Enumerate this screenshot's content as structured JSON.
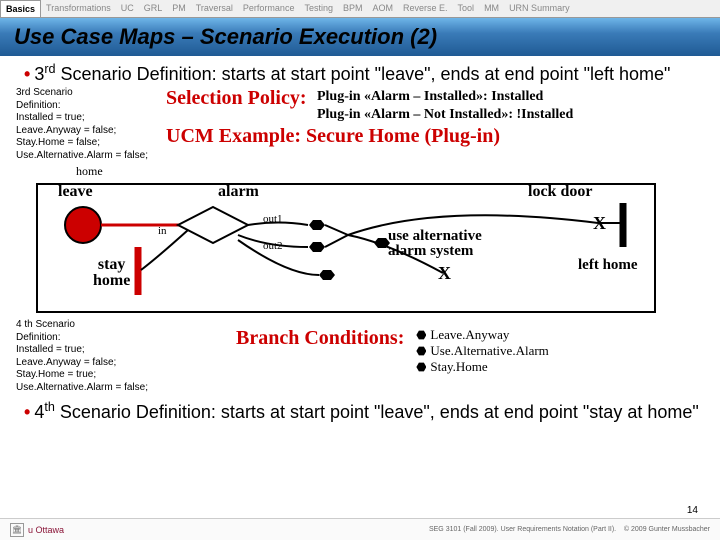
{
  "tabs": [
    "Basics",
    "Transformations",
    "UC",
    "GRL",
    "PM",
    "Traversal",
    "Performance",
    "Testing",
    "BPM",
    "AOM",
    "Reverse E.",
    "Tool",
    "MM",
    "URN Summary"
  ],
  "active_tab": 0,
  "title": "Use Case Maps – Scenario Execution (2)",
  "bullet3": {
    "ord": "3",
    "sup": "rd",
    "text": " Scenario Definition: starts at start point \"leave\", ends at end point \"left home\""
  },
  "scenario3": {
    "heading": "3rd Scenario",
    "deflabel": "Definition:",
    "lines": [
      "Installed = true;",
      "Leave.Anyway = false;",
      "Stay.Home = false;",
      "Use.Alternative.Alarm = false;"
    ]
  },
  "policy": {
    "label": "Selection Policy:",
    "p1": "Plug-in «Alarm – Installed»: Installed",
    "p2": "Plug-in «Alarm – Not Installed»: !Installed"
  },
  "example": {
    "label": "UCM Example: Secure Home (Plug-in)"
  },
  "sub_home": "home",
  "diagram": {
    "labels": {
      "leave": "leave",
      "alarm": "alarm",
      "lockdoor": "lock door",
      "in": "in",
      "out1": "out1",
      "out2": "out2",
      "stayhome": "stay\nhome",
      "usealt": "use alternative\nalarm system",
      "lefthome": "left home",
      "X1": "X",
      "X2": "X"
    }
  },
  "scenario4": {
    "heading": "4 th Scenario",
    "deflabel": "Definition:",
    "lines": [
      "Installed = true;",
      "Leave.Anyway = false;",
      "Stay.Home = true;",
      "Use.Alternative.Alarm = false;"
    ]
  },
  "branch": {
    "label": "Branch Conditions:",
    "items": [
      "Leave.Anyway",
      "Use.Alternative.Alarm",
      "Stay.Home"
    ]
  },
  "bullet4": {
    "ord": "4",
    "sup": "th",
    "text": " Scenario Definition: starts at start point \"leave\", ends at end point \"stay at home\""
  },
  "pagenum": "14",
  "footer": {
    "univ": "u Ottawa",
    "course": "SEG 3101 (Fall 2009).",
    "sub": "User Requirements Notation (Part II).",
    "copy": "© 2009 Gunter Mussbacher"
  }
}
